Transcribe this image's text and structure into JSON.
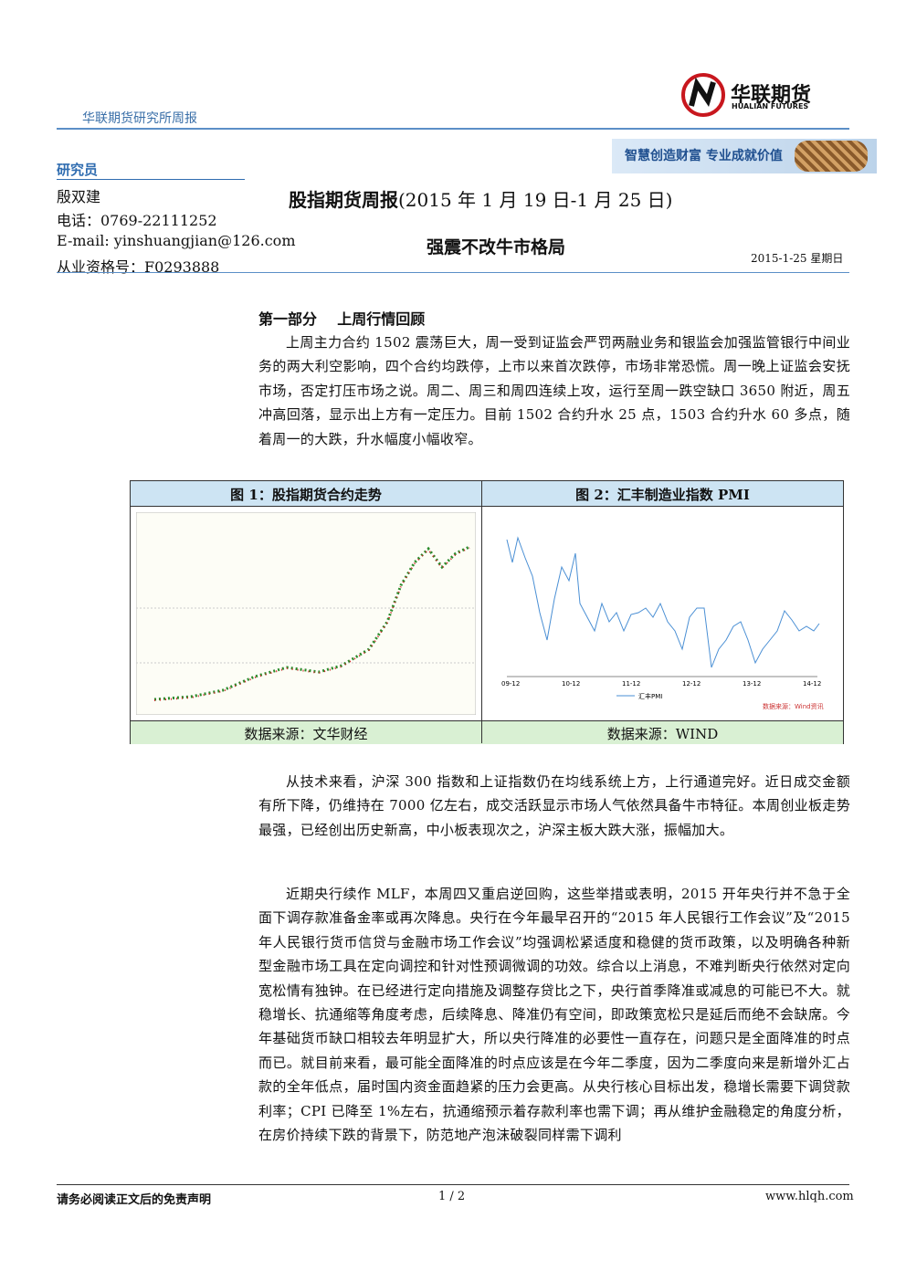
{
  "header": {
    "series_name": "华联期货研究所周报",
    "logo_text": "华联期货",
    "logo_sub": "HUALIAN FUTURES",
    "slogan": "智慧创造财富  专业成就价值"
  },
  "analyst": {
    "heading": "研究员",
    "name": "殷双建",
    "phone": "电话：0769-22111252",
    "email": "E-mail: yinshuangjian@126.com",
    "license": "从业资格号：F0293888"
  },
  "report": {
    "title": "股指期货周报",
    "period": "(2015 年 1 月 19 日-1 月 25 日)",
    "subtitle": "强震不改牛市格局",
    "date": "2015-1-25  星期日"
  },
  "section": {
    "heading": "第一部分    上周行情回顾"
  },
  "paragraphs": [
    "上周主力合约 1502 震荡巨大，周一受到证监会严罚两融业务和银监会加强监管银行中间业务的两大利空影响，四个合约均跌停，上市以来首次跌停，市场非常恐慌。周一晚上证监会安抚市场，否定打压市场之说。周二、周三和周四连续上攻，运行至周一跌空缺口 3650 附近，周五冲高回落，显示出上方有一定压力。目前 1502 合约升水 25 点，1503 合约升水 60 多点，随着周一的大跌，升水幅度小幅收窄。",
    "从技术来看，沪深 300 指数和上证指数仍在均线系统上方，上行通道完好。近日成交金额有所下降，仍维持在 7000 亿左右，成交活跃显示市场人气依然具备牛市特征。本周创业板走势最强，已经创出历史新高，中小板表现次之，沪深主板大跌大涨，振幅加大。",
    "近期央行续作 MLF，本周四又重启逆回购，这些举措或表明，2015 开年央行并不急于全面下调存款准备金率或再次降息。央行在今年最早召开的“2015 年人民银行工作会议”及“2015 年人民银行货币信贷与金融市场工作会议”均强调松紧适度和稳健的货币政策，以及明确各种新型金融市场工具在定向调控和针对性预调微调的功效。综合以上消息，不难判断央行依然对定向宽松情有独钟。在已经进行定向措施及调整存贷比之下，央行首季降准或减息的可能已不大。就稳增长、抗通缩等角度考虑，后续降息、降准仍有空间，即政策宽松只是延后而绝不会缺席。今年基础货币缺口相较去年明显扩大，所以央行降准的必要性一直存在，问题只是全面降准的时点而已。就目前来看，最可能全面降准的时点应该是在今年二季度，因为二季度向来是新增外汇占款的全年低点，届时国内资金面趋紧的压力会更高。从央行核心目标出发，稳增长需要下调贷款利率；CPI 已降至 1%左右，抗通缩预示着存款利率也需下调；再从维护金融稳定的角度分析，在房价持续下跌的背景下，防范地产泡沫破裂同样需下调利"
  ],
  "figures": [
    {
      "title": "图 1：股指期货合约走势",
      "source": "数据来源：文华财经"
    },
    {
      "title": "图 2：汇丰制造业指数 PMI",
      "source": "数据来源：WIND",
      "x_labels": [
        "09-12",
        "10-12",
        "11-12",
        "12-12",
        "13-12",
        "14-12"
      ],
      "legend": "汇丰PMI",
      "watermark": "数据来源：Wind资讯"
    }
  ],
  "footer": {
    "disclaimer": "请务必阅读正文后的免责声明",
    "page": "1 / 2",
    "website": "www.hlqh.com"
  }
}
